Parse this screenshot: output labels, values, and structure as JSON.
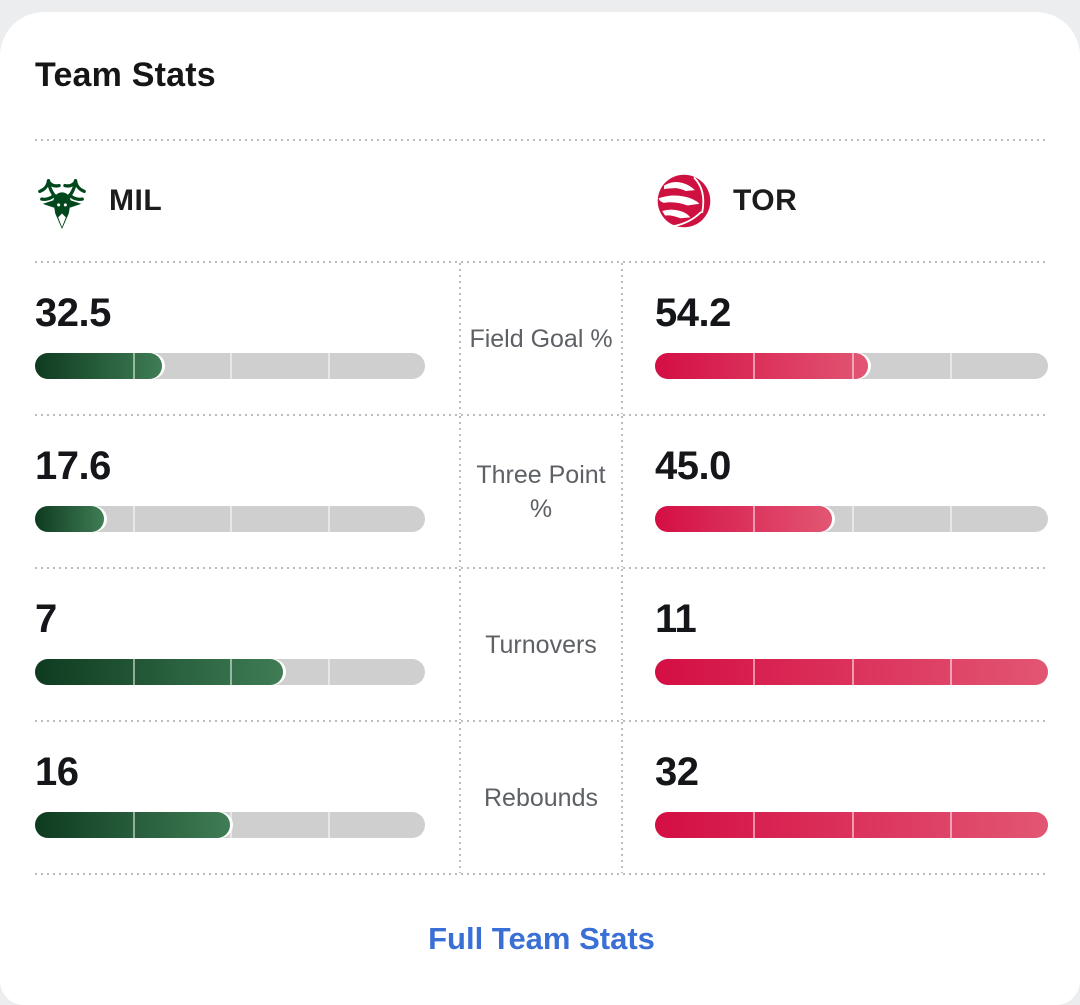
{
  "title": "Team Stats",
  "teams": {
    "home": {
      "abbr": "MIL",
      "logo_icon": "bucks-logo-icon"
    },
    "away": {
      "abbr": "TOR",
      "logo_icon": "raptors-logo-icon"
    }
  },
  "rows": [
    {
      "label": "Field Goal %",
      "home": {
        "value": "32.5",
        "pct": 32.5
      },
      "away": {
        "value": "54.2",
        "pct": 54.2
      }
    },
    {
      "label": "Three Point %",
      "home": {
        "value": "17.6",
        "pct": 17.6
      },
      "away": {
        "value": "45.0",
        "pct": 45
      }
    },
    {
      "label": "Turnovers",
      "home": {
        "value": "7",
        "pct": 63.6
      },
      "away": {
        "value": "11",
        "pct": 100
      }
    },
    {
      "label": "Rebounds",
      "home": {
        "value": "16",
        "pct": 50
      },
      "away": {
        "value": "32",
        "pct": 100
      }
    }
  ],
  "footer": {
    "link_label": "Full Team Stats"
  },
  "colors": {
    "home_bar_start": "#0e3b20",
    "home_bar_end": "#3f7d55",
    "away_bar_start": "#d40e44",
    "away_bar_end": "#e25673",
    "track": "#cfcfcf",
    "value": "#141619",
    "label": "#5d6166",
    "link": "#3a70d6",
    "bucks_green": "#00471B",
    "raptors_red": "#CE1141"
  },
  "chart_data": {
    "type": "bar",
    "categories": [
      "Field Goal %",
      "Three Point %",
      "Turnovers",
      "Rebounds"
    ],
    "series": [
      {
        "name": "MIL",
        "values": [
          32.5,
          17.6,
          7,
          16
        ]
      },
      {
        "name": "TOR",
        "values": [
          54.2,
          45.0,
          11,
          32
        ]
      }
    ],
    "title": "Team Stats",
    "legend_position": "top",
    "notes": "fill fraction = value for percentage stats, value/max for counting stats"
  }
}
